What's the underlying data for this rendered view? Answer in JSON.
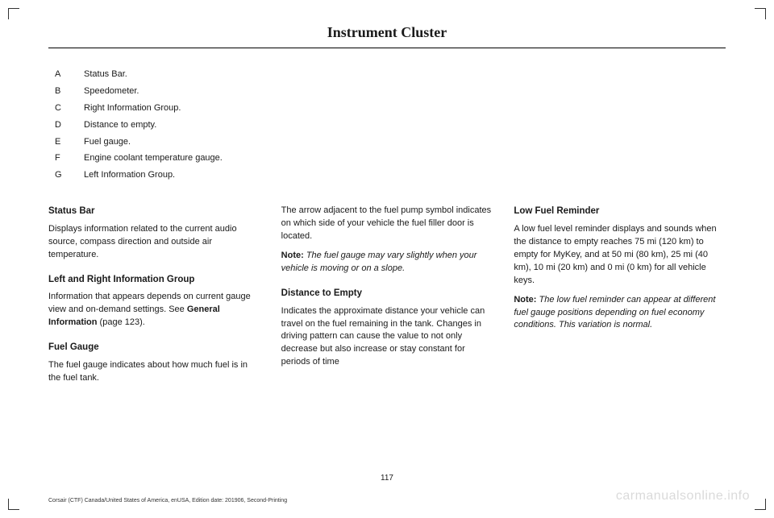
{
  "header": {
    "title": "Instrument Cluster"
  },
  "legend": {
    "items": [
      {
        "letter": "A",
        "text": "Status Bar."
      },
      {
        "letter": "B",
        "text": "Speedometer."
      },
      {
        "letter": "C",
        "text": "Right Information Group."
      },
      {
        "letter": "D",
        "text": "Distance to empty."
      },
      {
        "letter": "E",
        "text": "Fuel gauge."
      },
      {
        "letter": "F",
        "text": "Engine coolant temperature gauge."
      },
      {
        "letter": "G",
        "text": "Left Information Group."
      }
    ]
  },
  "col1": {
    "h1": "Status Bar",
    "p1": "Displays information related to the current audio source, compass direction and outside air temperature.",
    "h2": "Left and Right Information Group",
    "p2a": "Information that appears depends on current gauge view and on-demand settings.  See ",
    "p2b": "General Information",
    "p2c": " (page 123).",
    "h3": "Fuel Gauge",
    "p3": "The fuel gauge indicates about how much fuel is in the fuel tank."
  },
  "col2": {
    "p1": "The arrow adjacent to the fuel pump symbol indicates on which side of your vehicle the fuel filler door is located.",
    "n1a": "Note:",
    "n1b": " The fuel gauge may vary slightly when your vehicle is moving or on a slope.",
    "h1": "Distance to Empty",
    "p2": "Indicates the approximate distance your vehicle can travel on the fuel remaining in the tank. Changes in driving pattern can cause the value to not only decrease but also increase or stay constant for periods of time"
  },
  "col3": {
    "h1": "Low Fuel Reminder",
    "p1": "A low fuel level reminder displays and sounds when the distance to empty reaches 75 mi (120 km) to empty for MyKey, and at 50 mi (80 km), 25 mi (40 km), 10 mi (20 km) and 0 mi (0 km) for all vehicle keys.",
    "n1a": "Note:",
    "n1b": " The low fuel reminder can appear at different fuel gauge positions depending on fuel economy conditions. This variation is normal."
  },
  "footer": {
    "page_number": "117",
    "edition": "Corsair (CTF) Canada/United States of America, enUSA, Edition date: 201906, Second-Printing",
    "watermark": "carmanualsonline.info"
  }
}
